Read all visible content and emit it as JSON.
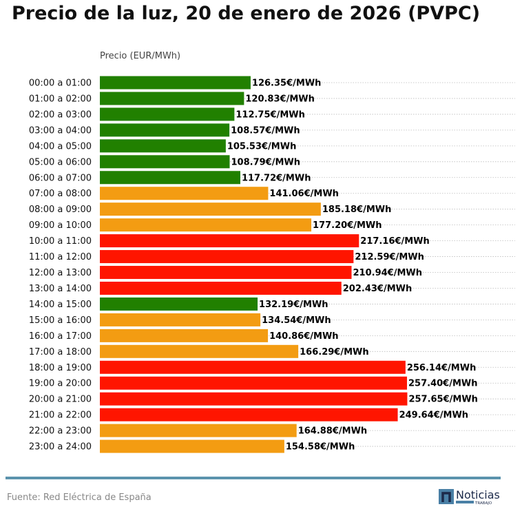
{
  "title": "Precio de la luz, 20 de enero de 2026 (PVPC)",
  "source": "Fuente: Red Eléctrica de España",
  "logo_text": "Noticias Trabajo",
  "colors": {
    "low": "#218000",
    "mid": "#f39c12",
    "high": "#ff1500",
    "rule": "#5b93ad"
  },
  "chart_data": {
    "type": "bar",
    "orientation": "horizontal",
    "title": "Precio de la luz, 20 de enero de 2026 (PVPC)",
    "xlabel": "Precio (EUR/MWh)",
    "ylabel": "",
    "xlim": [
      0,
      348
    ],
    "grid": "horizontal dotted",
    "value_suffix": "€/MWh",
    "categories": [
      "00:00 a 01:00",
      "01:00 a 02:00",
      "02:00 a 03:00",
      "03:00 a 04:00",
      "04:00 a 05:00",
      "05:00 a 06:00",
      "06:00 a 07:00",
      "07:00 a 08:00",
      "08:00 a 09:00",
      "09:00 a 10:00",
      "10:00 a 11:00",
      "11:00 a 12:00",
      "12:00 a 13:00",
      "13:00 a 14:00",
      "14:00 a 15:00",
      "15:00 a 16:00",
      "16:00 a 17:00",
      "17:00 a 18:00",
      "18:00 a 19:00",
      "19:00 a 20:00",
      "20:00 a 21:00",
      "21:00 a 22:00",
      "22:00 a 23:00",
      "23:00 a 24:00"
    ],
    "values": [
      126.35,
      120.83,
      112.75,
      108.57,
      105.53,
      108.79,
      117.72,
      141.06,
      185.18,
      177.2,
      217.16,
      212.59,
      210.94,
      202.43,
      132.19,
      134.54,
      140.86,
      166.29,
      256.14,
      257.4,
      257.65,
      249.64,
      164.88,
      154.58
    ],
    "bar_levels": [
      "low",
      "low",
      "low",
      "low",
      "low",
      "low",
      "low",
      "mid",
      "mid",
      "mid",
      "high",
      "high",
      "high",
      "high",
      "low",
      "mid",
      "mid",
      "mid",
      "high",
      "high",
      "high",
      "high",
      "mid",
      "mid"
    ]
  }
}
